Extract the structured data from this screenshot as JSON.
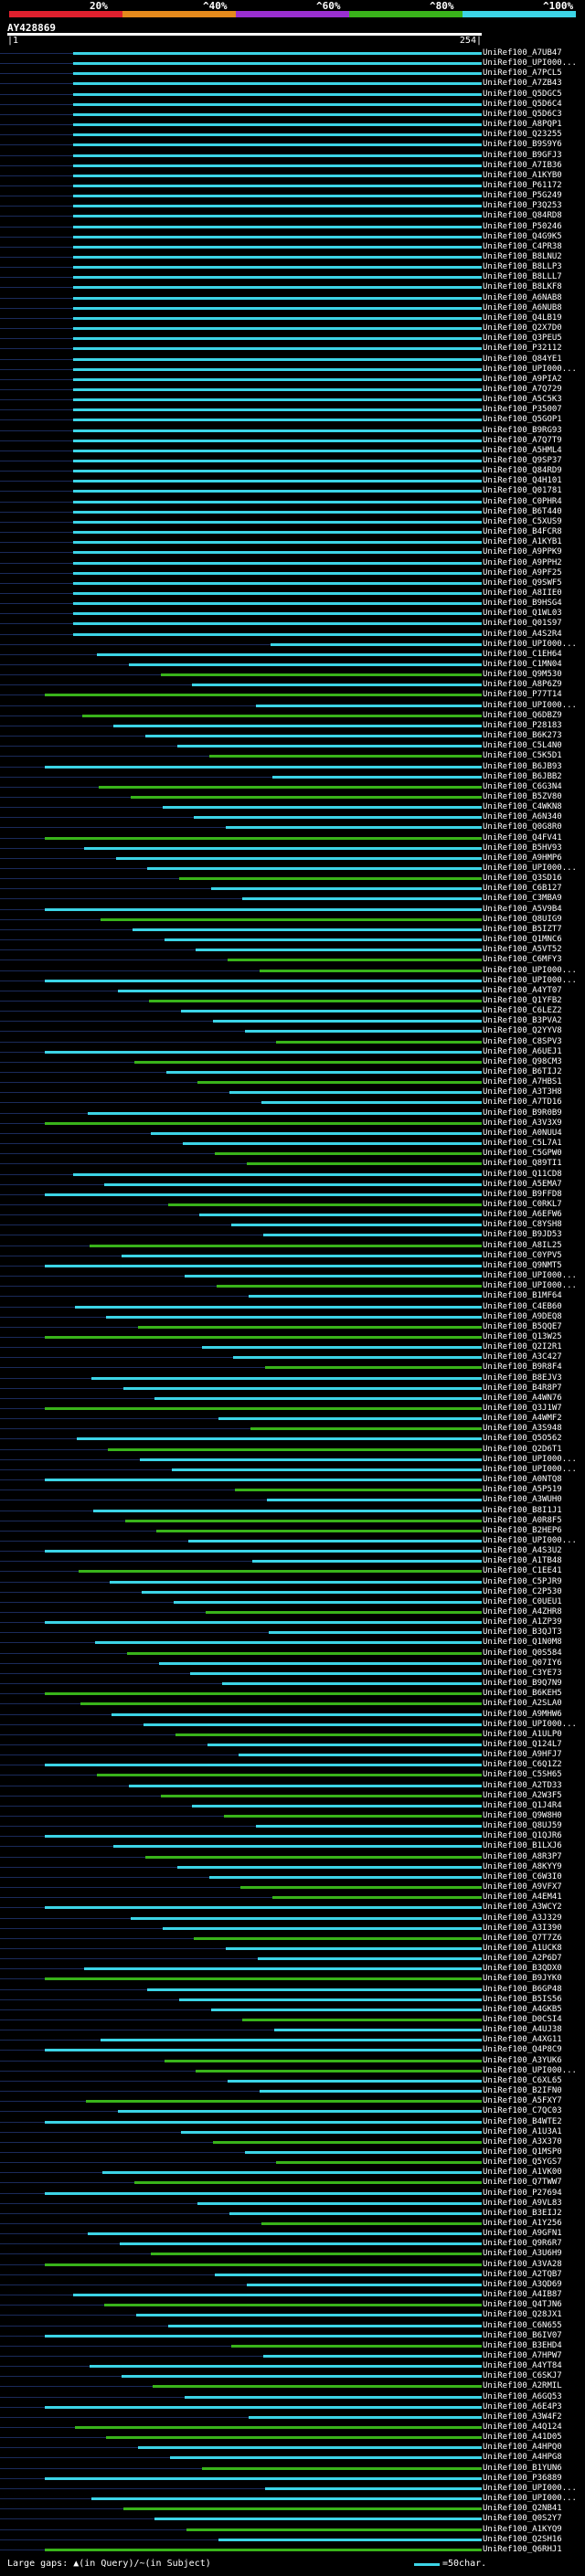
{
  "legend": {
    "labels": [
      "20%",
      "^40%",
      "^60%",
      "^80%",
      "^100%"
    ],
    "colors": [
      "#e0202e",
      "#e58a1c",
      "#9a2fd0",
      "#39b31a",
      "#3cd4e6"
    ]
  },
  "query": {
    "id": "AY428869",
    "start_label": "|1",
    "end_label": "254|",
    "length": 254
  },
  "footer": {
    "text": "Large gaps: ▲(in Query)/~(in Subject)",
    "scale": "=50char."
  },
  "hits": [
    "UniRef100_A7UB47",
    "UniRef100_UPI000...",
    "UniRef100_A7PCL5",
    "UniRef100_A7ZB43",
    "UniRef100_Q5DGC5",
    "UniRef100_Q5D6C4",
    "UniRef100_Q5D6C3",
    "UniRef100_A8PQP1",
    "UniRef100_Q23255",
    "UniRef100_B9S9Y6",
    "UniRef100_B9GFJ3",
    "UniRef100_A7IB36",
    "UniRef100_A1KYB0",
    "UniRef100_P61172",
    "UniRef100_P5G249",
    "UniRef100_P3Q253",
    "UniRef100_Q84RD8",
    "UniRef100_P50246",
    "UniRef100_Q4G9K5",
    "UniRef100_C4PR38",
    "UniRef100_B8LNU2",
    "UniRef100_B8LLP3",
    "UniRef100_B8LLL7",
    "UniRef100_B8LKF8",
    "UniRef100_A6NAB8",
    "UniRef100_A6NUB8",
    "UniRef100_Q4LB19",
    "UniRef100_Q2X7D0",
    "UniRef100_Q3PEU5",
    "UniRef100_P32112",
    "UniRef100_Q84YE1",
    "UniRef100_UPI000...",
    "UniRef100_A9PIA2",
    "UniRef100_A7Q729",
    "UniRef100_A5C5K3",
    "UniRef100_P35007",
    "UniRef100_Q5GOP1",
    "UniRef100_B9RG93",
    "UniRef100_A7Q7T9",
    "UniRef100_A5HML4",
    "UniRef100_Q9SP37",
    "UniRef100_Q84RD9",
    "UniRef100_Q4H101",
    "UniRef100_Q01781",
    "UniRef100_C0PHR4",
    "UniRef100_B6T440",
    "UniRef100_C5XUS9",
    "UniRef100_B4FCR8",
    "UniRef100_A1KYB1",
    "UniRef100_A9PPK9",
    "UniRef100_A9PPH2",
    "UniRef100_A9PF25",
    "UniRef100_Q9SWF5",
    "UniRef100_A8IIE0",
    "UniRef100_B9HSG4",
    "UniRef100_Q1WL03",
    "UniRef100_Q01S97",
    "UniRef100_A4S2R4",
    "UniRef100_UPI000...",
    "UniRef100_C1EH64",
    "UniRef100_C1MN04",
    "UniRef100_Q9M530",
    "UniRef100_A8P6Z9",
    "UniRef100_P77T14",
    "UniRef100_UPI000...",
    "UniRef100_Q6DBZ9",
    "UniRef100_P28183",
    "UniRef100_B6K273",
    "UniRef100_C5L4N0",
    "UniRef100_C5K5D1",
    "UniRef100_B6JB93",
    "UniRef100_B6JBB2",
    "UniRef100_C6G3N4",
    "UniRef100_B5ZV80",
    "UniRef100_C4WKN8",
    "UniRef100_A6N340",
    "UniRef100_Q0G8R0",
    "UniRef100_Q4FV41",
    "UniRef100_B5HV93",
    "UniRef100_A9HMP6",
    "UniRef100_UPI000...",
    "UniRef100_Q3SD16",
    "UniRef100_C6B127",
    "UniRef100_C3MBA9",
    "UniRef100_A5V9B4",
    "UniRef100_Q8UIG9",
    "UniRef100_B5IZT7",
    "UniRef100_Q1MNC6",
    "UniRef100_A5VT52",
    "UniRef100_C6MFY3",
    "UniRef100_UPI000...",
    "UniRef100_UPI000...",
    "UniRef100_A4YT07",
    "UniRef100_Q1YFB2",
    "UniRef100_C6LEZ2",
    "UniRef100_B3PVA2",
    "UniRef100_Q2YYV8",
    "UniRef100_C8SPV3",
    "UniRef100_A6UEJ1",
    "UniRef100_Q98CM3",
    "UniRef100_B6TIJ2",
    "UniRef100_A7HBS1",
    "UniRef100_A3T3H8",
    "UniRef100_A7TD16",
    "UniRef100_B9R0B9",
    "UniRef100_A3V3X9",
    "UniRef100_A0NUU4",
    "UniRef100_C5L7A1",
    "UniRef100_C5GPW0",
    "UniRef100_Q89TI1",
    "UniRef100_Q11CD8",
    "UniRef100_A5EMA7",
    "UniRef100_B9FFD8",
    "UniRef100_C0RKL7",
    "UniRef100_A6EFW6",
    "UniRef100_C8YSH8",
    "UniRef100_B9JD53",
    "UniRef100_A8IL25",
    "UniRef100_C0YPV5",
    "UniRef100_Q9NMT5",
    "UniRef100_UPI000...",
    "UniRef100_UPI000...",
    "UniRef100_B1MF64",
    "UniRef100_C4EB60",
    "UniRef100_A9DEQ8",
    "UniRef100_B5QQE7",
    "UniRef100_Q13W25",
    "UniRef100_Q2I2R1",
    "UniRef100_A3C427",
    "UniRef100_B9R8F4",
    "UniRef100_B8EJV3",
    "UniRef100_B4R8P7",
    "UniRef100_A4WN76",
    "UniRef100_Q3J1W7",
    "UniRef100_A4WMF2",
    "UniRef100_A3S948",
    "UniRef100_Q5O562",
    "UniRef100_Q2D6T1",
    "UniRef100_UPI000...",
    "UniRef100_UPI000...",
    "UniRef100_A0NTQ8",
    "UniRef100_A5P519",
    "UniRef100_A3WUH0",
    "UniRef100_B8I1J1",
    "UniRef100_A0R8F5",
    "UniRef100_B2HEP6",
    "UniRef100_UPI000...",
    "UniRef100_A4S3U2",
    "UniRef100_A1TB48",
    "UniRef100_C1EE41",
    "UniRef100_C5PJR9",
    "UniRef100_C2P530",
    "UniRef100_C0UEU1",
    "UniRef100_A4ZHR8",
    "UniRef100_A1ZP39",
    "UniRef100_B3QJT3",
    "UniRef100_Q1N0M8",
    "UniRef100_Q0S584",
    "UniRef100_Q07IY6",
    "UniRef100_C3YE73",
    "UniRef100_B9Q7N9",
    "UniRef100_B6KEH5",
    "UniRef100_A2SLA0",
    "UniRef100_A9MHW6",
    "UniRef100_UPI000...",
    "UniRef100_A1ULP0",
    "UniRef100_Q124L7",
    "UniRef100_A9HFJ7",
    "UniRef100_C6Q1Z2",
    "UniRef100_C5SH65",
    "UniRef100_A2TD33",
    "UniRef100_A2W3F5",
    "UniRef100_Q1J4R4",
    "UniRef100_Q9W8H0",
    "UniRef100_Q8UJ59",
    "UniRef100_Q1QJR6",
    "UniRef100_B1LXJ6",
    "UniRef100_A8R3P7",
    "UniRef100_A8KYY9",
    "UniRef100_C6W3I0",
    "UniRef100_A9VFX7",
    "UniRef100_A4EM41",
    "UniRef100_A3WCY2",
    "UniRef100_A3J329",
    "UniRef100_A3I390",
    "UniRef100_Q7T7Z6",
    "UniRef100_A1UCK8",
    "UniRef100_A2P6D7",
    "UniRef100_B3QDX0",
    "UniRef100_B9JYK0",
    "UniRef100_B6GP48",
    "UniRef100_B5IS56",
    "UniRef100_A4GKB5",
    "UniRef100_D0CSI4",
    "UniRef100_A4UJ38",
    "UniRef100_A4XG11",
    "UniRef100_Q4P8C9",
    "UniRef100_A3YUK6",
    "UniRef100_UPI000...",
    "UniRef100_C6XL65",
    "UniRef100_B2IFN0",
    "UniRef100_A5FXY7",
    "UniRef100_C7QC03",
    "UniRef100_B4WTE2",
    "UniRef100_A1U3A1",
    "UniRef100_A3X370",
    "UniRef100_Q1MSP0",
    "UniRef100_Q5YGS7",
    "UniRef100_A1VK00",
    "UniRef100_Q7TWW7",
    "UniRef100_P27694",
    "UniRef100_A9VL83",
    "UniRef100_B3EIJ2",
    "UniRef100_A1Y256",
    "UniRef100_A9GFN1",
    "UniRef100_Q9R6R7",
    "UniRef100_A3U6H9",
    "UniRef100_A3VA28",
    "UniRef100_A2TQB7",
    "UniRef100_A3QD69",
    "UniRef100_A4IB87",
    "UniRef100_Q4TJN6",
    "UniRef100_Q28JX1",
    "UniRef100_C6N655",
    "UniRef100_B6IV07",
    "UniRef100_B3EHD4",
    "UniRef100_A7HPW7",
    "UniRef100_A4YT84",
    "UniRef100_C6SKJ7",
    "UniRef100_A2RMIL",
    "UniRef100_A6GQ53",
    "UniRef100_A6E4P3",
    "UniRef100_A3W4F2",
    "UniRef100_A4Q124",
    "UniRef100_A41D05",
    "UniRef100_A4HPQ0",
    "UniRef100_A4HPG8",
    "UniRef100_B1YUN6",
    "UniRef100_P36889",
    "UniRef100_UPI000...",
    "UniRef100_UPI000...",
    "UniRef100_Q2NB41",
    "UniRef100_Q0S2Y7",
    "UniRef100_A1KYQ9",
    "UniRef100_Q2SH16",
    "UniRef100_Q6RHJ1"
  ]
}
